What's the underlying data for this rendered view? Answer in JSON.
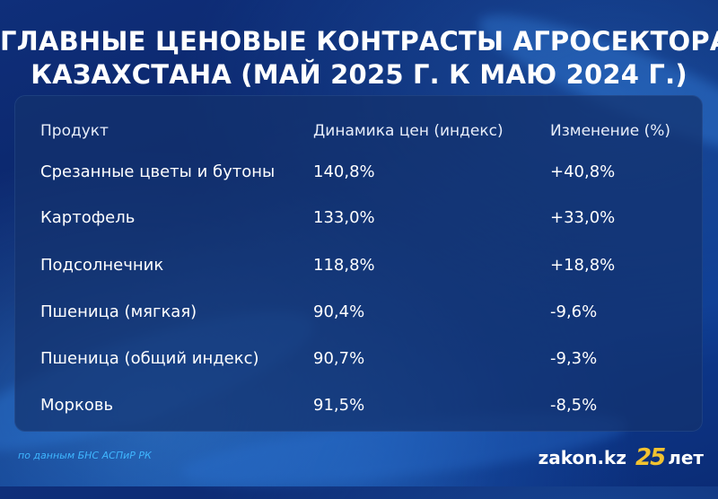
{
  "title": {
    "line1": "ГЛАВНЫЕ ЦЕНОВЫЕ КОНТРАСТЫ АГРОСЕКТОРА",
    "line2": "КАЗАХСТАНА (МАЙ 2025 Г. К МАЮ 2024 Г.)"
  },
  "table": {
    "headers": [
      "Продукт",
      "Динамика цен (индекс)",
      "Изменение (%)"
    ],
    "rows": [
      [
        "Срезанные цветы и бутоны",
        "140,8%",
        "+40,8%"
      ],
      [
        "Картофель",
        "133,0%",
        "+33,0%"
      ],
      [
        "Подсолнечник",
        "118,8%",
        "+18,8%"
      ],
      [
        "Пшеница (мягкая)",
        "90,4%",
        "-9,6%"
      ],
      [
        "Пшеница (общий индекс)",
        "90,7%",
        "-9,3%"
      ],
      [
        "Морковь",
        "91,5%",
        "-8,5%"
      ]
    ]
  },
  "footer": {
    "source": "по данным БНС АСПиР РК",
    "brand": "zakon.kz",
    "anniversary_number": "25",
    "anniversary_word": "лет"
  },
  "colors": {
    "background": "#0a2468",
    "panel": "#143270",
    "text": "#ffffff",
    "source_text": "#3fb6ff",
    "brand_accent": "#f2c230"
  }
}
